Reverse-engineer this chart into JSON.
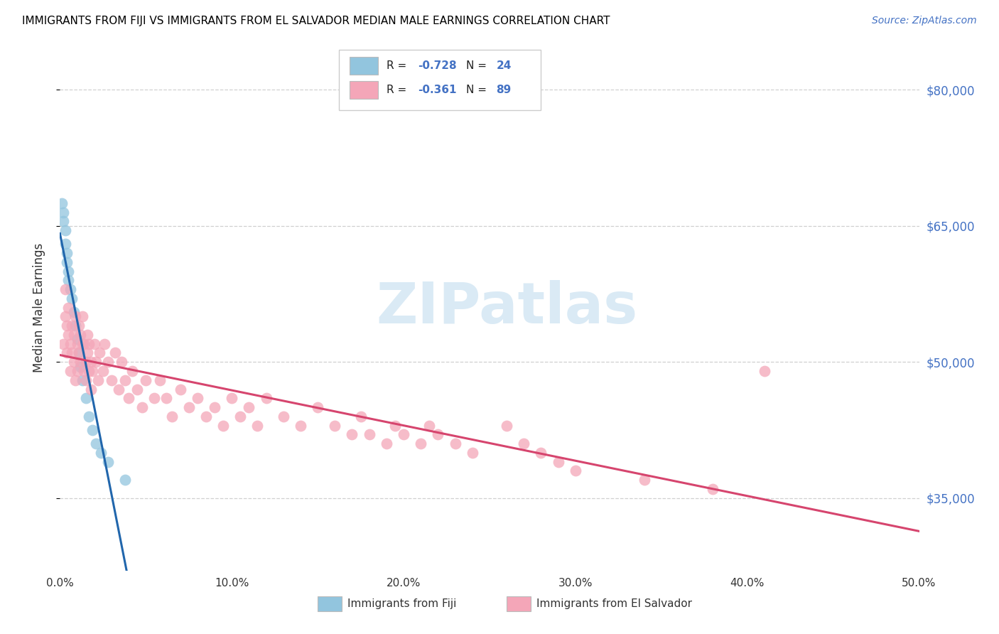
{
  "title": "IMMIGRANTS FROM FIJI VS IMMIGRANTS FROM EL SALVADOR MEDIAN MALE EARNINGS CORRELATION CHART",
  "source": "Source: ZipAtlas.com",
  "ylabel": "Median Male Earnings",
  "ytick_labels": [
    "$35,000",
    "$50,000",
    "$65,000",
    "$80,000"
  ],
  "ytick_vals": [
    35000,
    50000,
    65000,
    80000
  ],
  "ylim": [
    27000,
    85000
  ],
  "xlim": [
    0.0,
    0.5
  ],
  "xtick_vals": [
    0.0,
    0.1,
    0.2,
    0.3,
    0.4,
    0.5
  ],
  "xtick_labels": [
    "0.0%",
    "10.0%",
    "20.0%",
    "30.0%",
    "40.0%",
    "50.0%"
  ],
  "fiji_R": "-0.728",
  "fiji_N": "24",
  "salvador_R": "-0.361",
  "salvador_N": "89",
  "fiji_color": "#92c5de",
  "fiji_edge_color": "#92c5de",
  "fiji_line_color": "#2166ac",
  "salvador_color": "#f4a6b8",
  "salvador_edge_color": "#f4a6b8",
  "salvador_line_color": "#d6456e",
  "watermark_text": "ZIPatlas",
  "watermark_color": "#daeaf5",
  "legend_color_blue": "#4472c4",
  "background_color": "#ffffff",
  "grid_color": "#d0d0d0",
  "bottom_legend_items": [
    {
      "label": "Immigrants from Fiji",
      "color": "#92c5de"
    },
    {
      "label": "Immigrants from El Salvador",
      "color": "#f4a6b8"
    }
  ],
  "fiji_points": {
    "x": [
      0.001,
      0.002,
      0.002,
      0.003,
      0.003,
      0.004,
      0.004,
      0.005,
      0.005,
      0.006,
      0.007,
      0.008,
      0.009,
      0.01,
      0.011,
      0.012,
      0.013,
      0.015,
      0.017,
      0.019,
      0.021,
      0.024,
      0.028,
      0.038
    ],
    "y": [
      67500,
      66500,
      65500,
      64500,
      63000,
      62000,
      61000,
      60000,
      59000,
      58000,
      57000,
      55500,
      54000,
      52500,
      51000,
      49500,
      48000,
      46000,
      44000,
      42500,
      41000,
      40000,
      39000,
      37000
    ]
  },
  "salvador_points": {
    "x": [
      0.002,
      0.003,
      0.003,
      0.004,
      0.004,
      0.005,
      0.005,
      0.006,
      0.006,
      0.007,
      0.007,
      0.008,
      0.008,
      0.009,
      0.009,
      0.01,
      0.01,
      0.011,
      0.011,
      0.012,
      0.012,
      0.013,
      0.013,
      0.014,
      0.014,
      0.015,
      0.015,
      0.016,
      0.016,
      0.017,
      0.017,
      0.018,
      0.018,
      0.019,
      0.02,
      0.021,
      0.022,
      0.023,
      0.025,
      0.026,
      0.028,
      0.03,
      0.032,
      0.034,
      0.036,
      0.038,
      0.04,
      0.042,
      0.045,
      0.048,
      0.05,
      0.055,
      0.058,
      0.062,
      0.065,
      0.07,
      0.075,
      0.08,
      0.085,
      0.09,
      0.095,
      0.1,
      0.105,
      0.11,
      0.115,
      0.12,
      0.13,
      0.14,
      0.15,
      0.16,
      0.17,
      0.175,
      0.18,
      0.19,
      0.195,
      0.2,
      0.21,
      0.215,
      0.22,
      0.23,
      0.24,
      0.26,
      0.27,
      0.28,
      0.29,
      0.3,
      0.34,
      0.38,
      0.41
    ],
    "y": [
      52000,
      55000,
      58000,
      54000,
      51000,
      53000,
      56000,
      49000,
      52000,
      51000,
      54000,
      50000,
      53000,
      55000,
      48000,
      52000,
      49000,
      54000,
      51000,
      53000,
      50000,
      52000,
      55000,
      49000,
      52000,
      50000,
      48000,
      53000,
      51000,
      49000,
      52000,
      50000,
      47000,
      49000,
      52000,
      50000,
      48000,
      51000,
      49000,
      52000,
      50000,
      48000,
      51000,
      47000,
      50000,
      48000,
      46000,
      49000,
      47000,
      45000,
      48000,
      46000,
      48000,
      46000,
      44000,
      47000,
      45000,
      46000,
      44000,
      45000,
      43000,
      46000,
      44000,
      45000,
      43000,
      46000,
      44000,
      43000,
      45000,
      43000,
      42000,
      44000,
      42000,
      41000,
      43000,
      42000,
      41000,
      43000,
      42000,
      41000,
      40000,
      43000,
      41000,
      40000,
      39000,
      38000,
      37000,
      36000,
      49000
    ]
  }
}
